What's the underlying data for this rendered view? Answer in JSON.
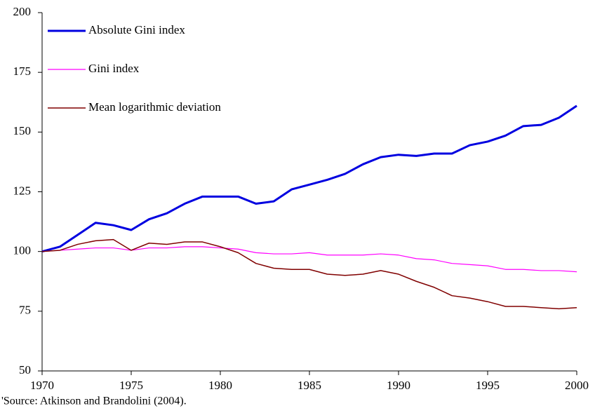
{
  "chart_data": {
    "type": "line",
    "x": [
      1970,
      1971,
      1972,
      1973,
      1974,
      1975,
      1976,
      1977,
      1978,
      1979,
      1980,
      1981,
      1982,
      1983,
      1984,
      1985,
      1986,
      1987,
      1988,
      1989,
      1990,
      1991,
      1992,
      1993,
      1994,
      1995,
      1996,
      1997,
      1998,
      1999,
      2000
    ],
    "series": [
      {
        "name": "Absolute Gini index",
        "color": "#0000e0",
        "linewidth": 3,
        "values": [
          100,
          102,
          107,
          112,
          111,
          109,
          113.5,
          116,
          120,
          123,
          123,
          123,
          120,
          121,
          126,
          128,
          130,
          132.5,
          136.5,
          139.5,
          140.5,
          140,
          141,
          141,
          144.5,
          146,
          148.5,
          152.5,
          153,
          156,
          161
        ]
      },
      {
        "name": "Gini index",
        "color": "#ff00ff",
        "linewidth": 1.2,
        "values": [
          100,
          100.5,
          101,
          101.5,
          101.5,
          100.5,
          101.5,
          101.5,
          102,
          102,
          101.5,
          101,
          99.5,
          99,
          99,
          99.5,
          98.5,
          98.5,
          98.5,
          99,
          98.5,
          97,
          96.5,
          95,
          94.5,
          94,
          92.5,
          92.5,
          92,
          92,
          91.5
        ]
      },
      {
        "name": "Mean logarithmic deviation",
        "color": "#800000",
        "linewidth": 1.5,
        "values": [
          100,
          100.5,
          103,
          104.5,
          105,
          100.5,
          103.5,
          103,
          104,
          104,
          102,
          99.5,
          95,
          93,
          92.5,
          92.5,
          90.5,
          90,
          90.5,
          92,
          90.5,
          87.5,
          85,
          81.5,
          80.5,
          79,
          77,
          77,
          76.5,
          76,
          76.5
        ]
      }
    ],
    "xlim": [
      1970,
      2000
    ],
    "xticks": [
      1970,
      1975,
      1980,
      1985,
      1990,
      1995,
      2000
    ],
    "ylim": [
      50,
      200
    ],
    "yticks": [
      50,
      75,
      100,
      125,
      150,
      175,
      200
    ],
    "grid": false,
    "legend": "upper left",
    "note": "'Source: Atkinson and Brandolini (2004)."
  }
}
